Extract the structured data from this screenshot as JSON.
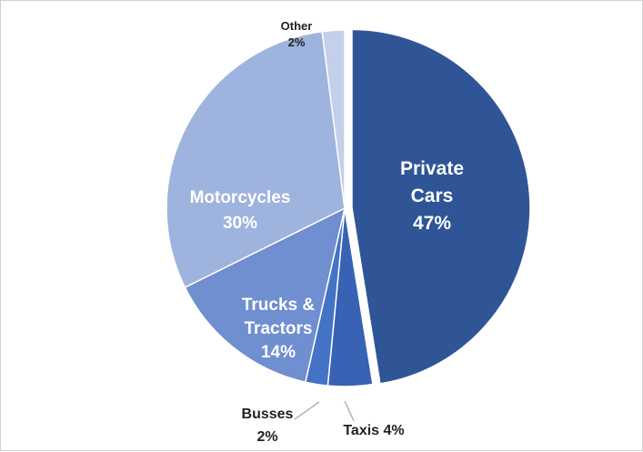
{
  "chart_data": {
    "type": "pie",
    "title": "",
    "slices": [
      {
        "label": "Private Cars",
        "line1": "Private",
        "line2": "Cars",
        "pct_text": "47%",
        "value": 47,
        "color": "#2f5597",
        "exploded": true
      },
      {
        "label": "Taxis",
        "text": "Taxis 4%",
        "value": 4,
        "color": "#3862b3"
      },
      {
        "label": "Busses",
        "line1": "Busses",
        "pct_text": "2%",
        "value": 2,
        "color": "#4472c4"
      },
      {
        "label": "Trucks & Tractors",
        "line1": "Trucks &",
        "line2": "Tractors",
        "pct_text": "14%",
        "value": 14,
        "color": "#6f8fd0"
      },
      {
        "label": "Motorcycles",
        "line1": "Motorcycles",
        "pct_text": "30%",
        "value": 30,
        "color": "#9fb3df"
      },
      {
        "label": "Other",
        "line1": "Other",
        "pct_text": "2%",
        "value": 2,
        "color": "#c4cfea"
      }
    ]
  }
}
